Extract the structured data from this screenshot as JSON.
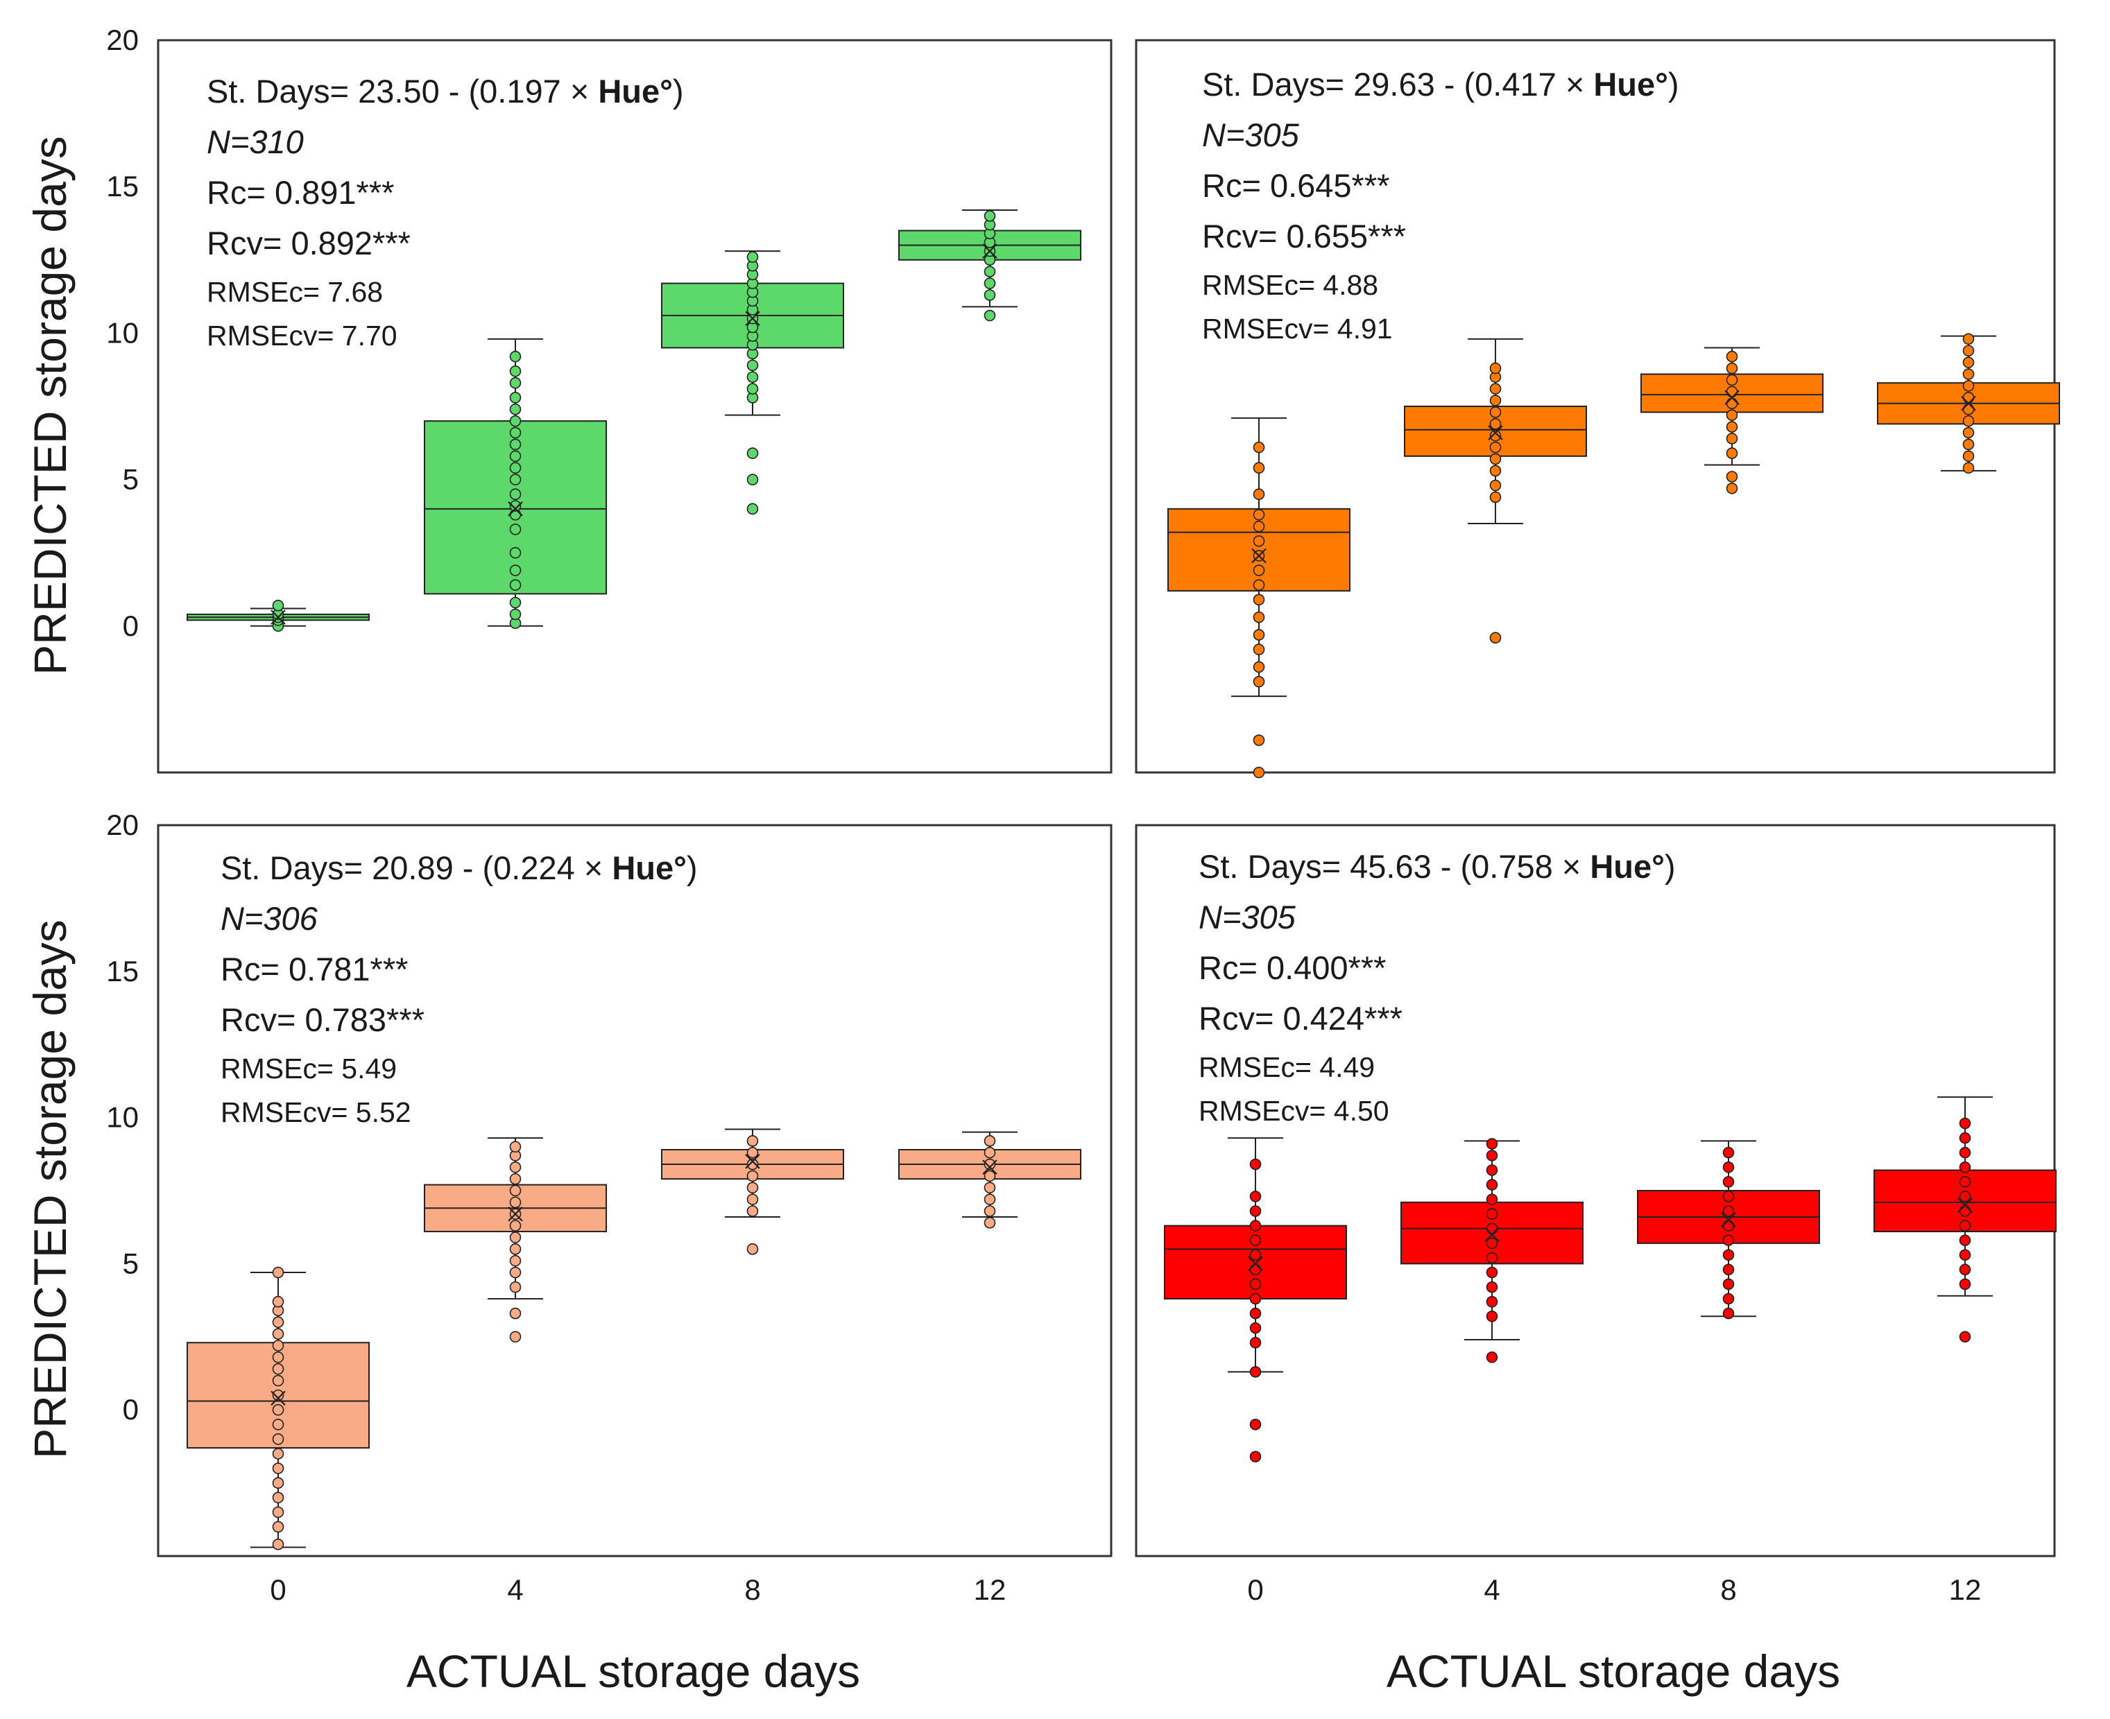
{
  "figure": {
    "ylabel": "PREDICTED storage days",
    "xlabel": "ACTUAL storage days"
  },
  "chart_data": [
    {
      "type": "box",
      "panel": "top-left",
      "color": "#5dd96c",
      "categories": [
        "0",
        "4",
        "8",
        "12"
      ],
      "ylim": [
        -5,
        20
      ],
      "yticks": [
        "0",
        "5",
        "10",
        "15",
        "20"
      ],
      "xticks": [],
      "yticks_shown": true,
      "annotation": {
        "eq_prefix": "St. Days= 23.50 - (0.197 × ",
        "eq_var": "Hue°",
        "eq_suffix": ")",
        "n": "N=310",
        "rc": "Rc= 0.891***",
        "rcv": "Rcv= 0.892***",
        "rmsec": "RMSEc= 7.68",
        "rmsecv": "RMSEcv= 7.70"
      },
      "boxes": [
        {
          "whislo": 0.0,
          "q1": 0.2,
          "med": 0.3,
          "q3": 0.4,
          "whishi": 0.6,
          "mean": 0.3,
          "points": [
            0.0,
            0.2,
            0.3,
            0.4,
            0.7
          ]
        },
        {
          "whislo": 0.0,
          "q1": 1.1,
          "med": 4.0,
          "q3": 7.0,
          "whishi": 9.8,
          "mean": 4.0,
          "points": [
            0.1,
            0.4,
            0.8,
            1.4,
            1.9,
            2.5,
            3.3,
            3.8,
            4.1,
            4.5,
            5.0,
            5.4,
            5.8,
            6.2,
            6.6,
            7.0,
            7.4,
            7.8,
            8.3,
            8.7,
            9.2
          ]
        },
        {
          "whislo": 7.2,
          "q1": 9.5,
          "med": 10.6,
          "q3": 11.7,
          "whishi": 12.8,
          "mean": 10.5,
          "points": [
            4.0,
            5.0,
            5.9,
            7.8,
            8.1,
            8.5,
            8.9,
            9.3,
            9.6,
            9.9,
            10.2,
            10.5,
            10.8,
            11.1,
            11.4,
            11.7,
            12.0,
            12.3,
            12.6
          ]
        },
        {
          "whislo": 10.9,
          "q1": 12.5,
          "med": 13.0,
          "q3": 13.5,
          "whishi": 14.2,
          "mean": 12.8,
          "points": [
            10.6,
            11.3,
            11.7,
            12.1,
            12.5,
            12.8,
            13.1,
            13.4,
            13.7,
            14.0
          ]
        }
      ]
    },
    {
      "type": "box",
      "panel": "top-right",
      "color": "#ff7a00",
      "categories": [
        "0",
        "4",
        "8",
        "12"
      ],
      "ylim": [
        -5,
        20
      ],
      "yticks": [],
      "xticks": [],
      "yticks_shown": false,
      "annotation": {
        "eq_prefix": "St. Days= 29.63 - (0.417 × ",
        "eq_var": "Hue°",
        "eq_suffix": ")",
        "n": "N=305",
        "rc": "Rc= 0.645***",
        "rcv": "Rcv= 0.655***",
        "rmsec": "RMSEc= 4.88",
        "rmsecv": "RMSEcv= 4.91"
      },
      "boxes": [
        {
          "whislo": -2.4,
          "q1": 1.2,
          "med": 3.2,
          "q3": 4.0,
          "whishi": 7.1,
          "mean": 2.4,
          "points": [
            -5.0,
            -3.9,
            -1.9,
            -1.4,
            -0.8,
            -0.3,
            0.3,
            0.9,
            1.4,
            1.9,
            2.4,
            2.9,
            3.4,
            3.8,
            4.5,
            5.4,
            6.1
          ]
        },
        {
          "whislo": 3.5,
          "q1": 5.8,
          "med": 6.7,
          "q3": 7.5,
          "whishi": 9.8,
          "mean": 6.6,
          "points": [
            -0.4,
            4.4,
            4.8,
            5.3,
            5.7,
            6.1,
            6.5,
            6.9,
            7.3,
            7.7,
            8.1,
            8.5,
            8.8
          ]
        },
        {
          "whislo": 5.5,
          "q1": 7.3,
          "med": 7.9,
          "q3": 8.6,
          "whishi": 9.5,
          "mean": 7.8,
          "points": [
            4.7,
            5.1,
            5.9,
            6.4,
            6.8,
            7.2,
            7.6,
            8.0,
            8.4,
            8.8,
            9.2
          ]
        },
        {
          "whislo": 5.3,
          "q1": 6.9,
          "med": 7.6,
          "q3": 8.3,
          "whishi": 9.9,
          "mean": 7.6,
          "points": [
            5.4,
            5.8,
            6.2,
            6.6,
            7.0,
            7.4,
            7.8,
            8.2,
            8.6,
            9.0,
            9.4,
            9.8
          ]
        }
      ]
    },
    {
      "type": "box",
      "panel": "bottom-left",
      "color": "#f9ab85",
      "categories": [
        "0",
        "4",
        "8",
        "12"
      ],
      "ylim": [
        -5,
        20
      ],
      "yticks": [
        "0",
        "5",
        "10",
        "15",
        "20"
      ],
      "xticks": [
        "0",
        "4",
        "8",
        "12"
      ],
      "yticks_shown": true,
      "annotation": {
        "eq_prefix": "St. Days= 20.89 - (0.224 × ",
        "eq_var": "Hue°",
        "eq_suffix": ")",
        "n": "N=306",
        "rc": "Rc= 0.781***",
        "rcv": "Rcv= 0.783***",
        "rmsec": "RMSEc= 5.49",
        "rmsecv": "RMSEcv= 5.52"
      },
      "boxes": [
        {
          "whislo": -4.7,
          "q1": -1.3,
          "med": 0.3,
          "q3": 2.3,
          "whishi": 4.7,
          "mean": 0.4,
          "points": [
            -4.6,
            -4.0,
            -3.5,
            -3.0,
            -2.5,
            -2.0,
            -1.5,
            -1.0,
            -0.5,
            0.0,
            0.5,
            1.0,
            1.4,
            1.8,
            2.2,
            2.6,
            3.0,
            3.4,
            3.7,
            4.7
          ]
        },
        {
          "whislo": 3.8,
          "q1": 6.1,
          "med": 6.9,
          "q3": 7.7,
          "whishi": 9.3,
          "mean": 6.7,
          "points": [
            2.5,
            3.3,
            4.2,
            4.7,
            5.1,
            5.5,
            5.9,
            6.3,
            6.7,
            7.1,
            7.5,
            7.9,
            8.3,
            8.7,
            9.0
          ]
        },
        {
          "whislo": 6.6,
          "q1": 7.9,
          "med": 8.4,
          "q3": 8.9,
          "whishi": 9.6,
          "mean": 8.5,
          "points": [
            5.5,
            6.8,
            7.2,
            7.6,
            8.0,
            8.4,
            8.8,
            9.2
          ]
        },
        {
          "whislo": 6.6,
          "q1": 7.9,
          "med": 8.4,
          "q3": 8.9,
          "whishi": 9.5,
          "mean": 8.3,
          "points": [
            6.4,
            6.8,
            7.2,
            7.6,
            8.0,
            8.4,
            8.8,
            9.2
          ]
        }
      ]
    },
    {
      "type": "box",
      "panel": "bottom-right",
      "color": "#ff0000",
      "categories": [
        "0",
        "4",
        "8",
        "12"
      ],
      "ylim": [
        -5,
        20
      ],
      "yticks": [],
      "xticks": [
        "0",
        "4",
        "8",
        "12"
      ],
      "yticks_shown": false,
      "annotation": {
        "eq_prefix": "St. Days= 45.63 - (0.758 × ",
        "eq_var": "Hue°",
        "eq_suffix": ")",
        "n": "N=305",
        "rc": "Rc= 0.400***",
        "rcv": "Rcv= 0.424***",
        "rmsec": "RMSEc= 4.49",
        "rmsecv": "RMSEcv= 4.50"
      },
      "boxes": [
        {
          "whislo": 1.3,
          "q1": 3.8,
          "med": 5.5,
          "q3": 6.3,
          "whishi": 9.3,
          "mean": 5.0,
          "points": [
            -1.6,
            -0.5,
            1.3,
            2.3,
            2.8,
            3.3,
            3.8,
            4.3,
            4.8,
            5.3,
            5.8,
            6.3,
            6.8,
            7.3,
            8.4
          ]
        },
        {
          "whislo": 2.4,
          "q1": 5.0,
          "med": 6.2,
          "q3": 7.1,
          "whishi": 9.2,
          "mean": 6.0,
          "points": [
            1.8,
            3.2,
            3.7,
            4.2,
            4.7,
            5.2,
            5.7,
            6.2,
            6.7,
            7.2,
            7.7,
            8.2,
            8.7,
            9.1
          ]
        },
        {
          "whislo": 3.2,
          "q1": 5.7,
          "med": 6.6,
          "q3": 7.5,
          "whishi": 9.2,
          "mean": 6.5,
          "points": [
            3.3,
            3.8,
            4.3,
            4.8,
            5.3,
            5.8,
            6.3,
            6.8,
            7.3,
            7.8,
            8.3,
            8.8
          ]
        },
        {
          "whislo": 3.9,
          "q1": 6.1,
          "med": 7.1,
          "q3": 8.2,
          "whishi": 10.7,
          "mean": 7.0,
          "points": [
            2.5,
            4.3,
            4.8,
            5.3,
            5.8,
            6.3,
            6.8,
            7.3,
            7.8,
            8.3,
            8.8,
            9.3,
            9.8
          ]
        }
      ]
    }
  ]
}
